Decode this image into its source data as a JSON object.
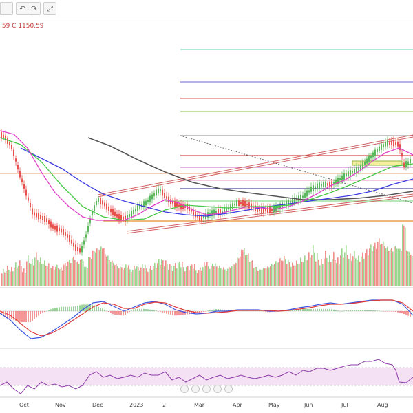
{
  "toolbar": {
    "undo_glyph": "↶",
    "redo_glyph": "↷",
    "fullscreen_glyph": "⤢",
    "icons": [
      "undo-icon",
      "redo-icon",
      "fullscreen-icon"
    ]
  },
  "ohlc_text": ".59 C 1150.59",
  "colors": {
    "up": "#5cb85c",
    "down": "#e8534f",
    "vol_up": "#9bd68f",
    "vol_down": "#ef8e8a",
    "sma_fast": "#e040c8",
    "sma_mid": "#44c844",
    "sma_slow": "#3a3ae0",
    "sma_long": "#555555",
    "macd": "#3a54e0",
    "signal": "#e03a3a",
    "rsi": "#8c3aa6"
  },
  "chart_data": {
    "type": "line",
    "x_ticks": [
      "Oct",
      "Nov",
      "Dec",
      "2023",
      "2",
      "Mar",
      "Apr",
      "May",
      "Jun",
      "Jul",
      "Aug"
    ],
    "last_close": 1150.59,
    "price_path": [
      [
        0,
        195
      ],
      [
        8,
        200
      ],
      [
        18,
        215
      ],
      [
        28,
        250
      ],
      [
        38,
        280
      ],
      [
        48,
        310
      ],
      [
        58,
        315
      ],
      [
        68,
        320
      ],
      [
        78,
        330
      ],
      [
        90,
        335
      ],
      [
        100,
        345
      ],
      [
        110,
        360
      ],
      [
        118,
        365
      ],
      [
        126,
        340
      ],
      [
        134,
        310
      ],
      [
        142,
        290
      ],
      [
        150,
        295
      ],
      [
        160,
        305
      ],
      [
        172,
        315
      ],
      [
        182,
        318
      ],
      [
        192,
        310
      ],
      [
        202,
        300
      ],
      [
        212,
        295
      ],
      [
        222,
        285
      ],
      [
        232,
        275
      ],
      [
        240,
        285
      ],
      [
        250,
        295
      ],
      [
        262,
        300
      ],
      [
        272,
        300
      ],
      [
        282,
        310
      ],
      [
        292,
        318
      ],
      [
        302,
        312
      ],
      [
        312,
        308
      ],
      [
        322,
        308
      ],
      [
        334,
        302
      ],
      [
        344,
        295
      ],
      [
        354,
        295
      ],
      [
        366,
        300
      ],
      [
        376,
        305
      ],
      [
        386,
        305
      ],
      [
        396,
        305
      ],
      [
        406,
        300
      ],
      [
        418,
        295
      ],
      [
        430,
        290
      ],
      [
        442,
        285
      ],
      [
        452,
        275
      ],
      [
        462,
        270
      ],
      [
        472,
        268
      ],
      [
        482,
        268
      ],
      [
        492,
        262
      ],
      [
        502,
        255
      ],
      [
        512,
        250
      ],
      [
        522,
        245
      ],
      [
        532,
        235
      ],
      [
        542,
        225
      ],
      [
        552,
        215
      ],
      [
        562,
        208
      ],
      [
        572,
        208
      ],
      [
        580,
        210
      ],
      [
        584,
        225
      ],
      [
        586,
        240
      ],
      [
        592,
        238
      ],
      [
        598,
        232
      ]
    ],
    "sma_fast_path": [
      [
        0,
        190
      ],
      [
        20,
        195
      ],
      [
        40,
        215
      ],
      [
        60,
        250
      ],
      [
        80,
        280
      ],
      [
        100,
        300
      ],
      [
        120,
        315
      ],
      [
        140,
        320
      ],
      [
        160,
        320
      ],
      [
        180,
        320
      ],
      [
        200,
        312
      ],
      [
        220,
        300
      ],
      [
        240,
        290
      ],
      [
        260,
        295
      ],
      [
        280,
        305
      ],
      [
        300,
        312
      ],
      [
        320,
        310
      ],
      [
        340,
        305
      ],
      [
        360,
        300
      ],
      [
        380,
        302
      ],
      [
        400,
        304
      ],
      [
        420,
        300
      ],
      [
        440,
        292
      ],
      [
        460,
        282
      ],
      [
        480,
        270
      ],
      [
        500,
        262
      ],
      [
        520,
        250
      ],
      [
        540,
        235
      ],
      [
        560,
        222
      ],
      [
        580,
        215
      ],
      [
        600,
        225
      ]
    ],
    "sma_mid_path": [
      [
        0,
        200
      ],
      [
        30,
        210
      ],
      [
        60,
        235
      ],
      [
        90,
        270
      ],
      [
        120,
        300
      ],
      [
        150,
        315
      ],
      [
        180,
        320
      ],
      [
        210,
        318
      ],
      [
        240,
        305
      ],
      [
        270,
        298
      ],
      [
        300,
        300
      ],
      [
        330,
        302
      ],
      [
        360,
        300
      ],
      [
        390,
        300
      ],
      [
        420,
        298
      ],
      [
        450,
        290
      ],
      [
        480,
        280
      ],
      [
        510,
        268
      ],
      [
        540,
        255
      ],
      [
        570,
        242
      ],
      [
        600,
        238
      ]
    ],
    "sma_slow_path": [
      [
        30,
        215
      ],
      [
        60,
        230
      ],
      [
        90,
        245
      ],
      [
        120,
        265
      ],
      [
        150,
        282
      ],
      [
        180,
        292
      ],
      [
        210,
        300
      ],
      [
        240,
        308
      ],
      [
        270,
        312
      ],
      [
        300,
        314
      ],
      [
        330,
        310
      ],
      [
        360,
        305
      ],
      [
        390,
        300
      ],
      [
        420,
        296
      ],
      [
        450,
        292
      ],
      [
        480,
        288
      ],
      [
        510,
        284
      ],
      [
        540,
        278
      ],
      [
        570,
        268
      ],
      [
        600,
        260
      ]
    ],
    "sma_long_path": [
      [
        128,
        200
      ],
      [
        160,
        212
      ],
      [
        200,
        232
      ],
      [
        240,
        250
      ],
      [
        280,
        265
      ],
      [
        320,
        274
      ],
      [
        360,
        280
      ],
      [
        400,
        285
      ],
      [
        440,
        290
      ],
      [
        480,
        290
      ],
      [
        520,
        288
      ],
      [
        560,
        284
      ],
      [
        600,
        278
      ]
    ],
    "macd_path": [
      [
        0,
        455
      ],
      [
        15,
        465
      ],
      [
        30,
        480
      ],
      [
        45,
        492
      ],
      [
        60,
        490
      ],
      [
        75,
        482
      ],
      [
        90,
        472
      ],
      [
        105,
        462
      ],
      [
        120,
        450
      ],
      [
        135,
        440
      ],
      [
        150,
        438
      ],
      [
        165,
        445
      ],
      [
        180,
        452
      ],
      [
        195,
        446
      ],
      [
        210,
        440
      ],
      [
        225,
        438
      ],
      [
        240,
        442
      ],
      [
        255,
        450
      ],
      [
        270,
        454
      ],
      [
        285,
        456
      ],
      [
        300,
        455
      ],
      [
        315,
        452
      ],
      [
        330,
        452
      ],
      [
        345,
        450
      ],
      [
        360,
        450
      ],
      [
        375,
        450
      ],
      [
        390,
        452
      ],
      [
        405,
        452
      ],
      [
        420,
        450
      ],
      [
        435,
        447
      ],
      [
        450,
        445
      ],
      [
        465,
        442
      ],
      [
        480,
        440
      ],
      [
        495,
        442
      ],
      [
        510,
        440
      ],
      [
        525,
        438
      ],
      [
        540,
        436
      ],
      [
        555,
        436
      ],
      [
        570,
        436
      ],
      [
        585,
        442
      ],
      [
        600,
        458
      ]
    ],
    "signal_path": [
      [
        0,
        452
      ],
      [
        15,
        458
      ],
      [
        30,
        470
      ],
      [
        45,
        482
      ],
      [
        60,
        488
      ],
      [
        75,
        484
      ],
      [
        90,
        476
      ],
      [
        105,
        466
      ],
      [
        120,
        456
      ],
      [
        135,
        446
      ],
      [
        150,
        440
      ],
      [
        165,
        442
      ],
      [
        180,
        448
      ],
      [
        195,
        448
      ],
      [
        210,
        442
      ],
      [
        225,
        439
      ],
      [
        240,
        440
      ],
      [
        255,
        446
      ],
      [
        270,
        451
      ],
      [
        285,
        454
      ],
      [
        300,
        455
      ],
      [
        315,
        454
      ],
      [
        330,
        453
      ],
      [
        345,
        451
      ],
      [
        360,
        451
      ],
      [
        375,
        451
      ],
      [
        390,
        451
      ],
      [
        405,
        452
      ],
      [
        420,
        451
      ],
      [
        435,
        449
      ],
      [
        450,
        447
      ],
      [
        465,
        444
      ],
      [
        480,
        442
      ],
      [
        495,
        442
      ],
      [
        510,
        441
      ],
      [
        525,
        439
      ],
      [
        540,
        437
      ],
      [
        555,
        436
      ],
      [
        570,
        436
      ],
      [
        585,
        440
      ],
      [
        600,
        452
      ]
    ],
    "rsi_path": [
      [
        0,
        560
      ],
      [
        10,
        555
      ],
      [
        20,
        565
      ],
      [
        30,
        572
      ],
      [
        40,
        560
      ],
      [
        50,
        565
      ],
      [
        60,
        555
      ],
      [
        70,
        560
      ],
      [
        80,
        558
      ],
      [
        90,
        562
      ],
      [
        100,
        560
      ],
      [
        110,
        565
      ],
      [
        120,
        560
      ],
      [
        130,
        545
      ],
      [
        140,
        540
      ],
      [
        150,
        548
      ],
      [
        160,
        545
      ],
      [
        170,
        550
      ],
      [
        180,
        548
      ],
      [
        190,
        545
      ],
      [
        200,
        548
      ],
      [
        210,
        542
      ],
      [
        220,
        545
      ],
      [
        230,
        545
      ],
      [
        240,
        540
      ],
      [
        250,
        552
      ],
      [
        260,
        548
      ],
      [
        270,
        555
      ],
      [
        280,
        550
      ],
      [
        290,
        545
      ],
      [
        300,
        552
      ],
      [
        310,
        548
      ],
      [
        320,
        545
      ],
      [
        330,
        550
      ],
      [
        340,
        548
      ],
      [
        350,
        545
      ],
      [
        360,
        548
      ],
      [
        370,
        550
      ],
      [
        380,
        548
      ],
      [
        390,
        545
      ],
      [
        400,
        548
      ],
      [
        410,
        545
      ],
      [
        420,
        540
      ],
      [
        430,
        545
      ],
      [
        440,
        538
      ],
      [
        450,
        540
      ],
      [
        460,
        535
      ],
      [
        470,
        535
      ],
      [
        480,
        538
      ],
      [
        490,
        535
      ],
      [
        500,
        532
      ],
      [
        510,
        530
      ],
      [
        520,
        530
      ],
      [
        530,
        525
      ],
      [
        540,
        525
      ],
      [
        550,
        522
      ],
      [
        560,
        528
      ],
      [
        570,
        530
      ],
      [
        575,
        538
      ],
      [
        580,
        555
      ],
      [
        590,
        556
      ],
      [
        600,
        548
      ]
    ],
    "volume_samples": [
      [
        4,
        25
      ],
      [
        10,
        30
      ],
      [
        16,
        28
      ],
      [
        22,
        35
      ],
      [
        28,
        38
      ],
      [
        34,
        26
      ],
      [
        40,
        45
      ],
      [
        46,
        40
      ],
      [
        52,
        50
      ],
      [
        58,
        42
      ],
      [
        64,
        38
      ],
      [
        70,
        34
      ],
      [
        76,
        30
      ],
      [
        82,
        32
      ],
      [
        88,
        28
      ],
      [
        94,
        35
      ],
      [
        100,
        40
      ],
      [
        106,
        45
      ],
      [
        112,
        38
      ],
      [
        118,
        42
      ],
      [
        124,
        30
      ],
      [
        130,
        45
      ],
      [
        136,
        55
      ],
      [
        142,
        58
      ],
      [
        148,
        60
      ],
      [
        154,
        48
      ],
      [
        160,
        40
      ],
      [
        166,
        35
      ],
      [
        172,
        30
      ],
      [
        178,
        28
      ],
      [
        184,
        32
      ],
      [
        190,
        25
      ],
      [
        196,
        30
      ],
      [
        202,
        28
      ],
      [
        208,
        32
      ],
      [
        214,
        26
      ],
      [
        220,
        30
      ],
      [
        226,
        34
      ],
      [
        232,
        40
      ],
      [
        238,
        38
      ],
      [
        244,
        32
      ],
      [
        250,
        30
      ],
      [
        256,
        34
      ],
      [
        262,
        36
      ],
      [
        268,
        28
      ],
      [
        274,
        30
      ],
      [
        280,
        32
      ],
      [
        286,
        24
      ],
      [
        292,
        28
      ],
      [
        298,
        36
      ],
      [
        304,
        30
      ],
      [
        310,
        34
      ],
      [
        316,
        30
      ],
      [
        322,
        28
      ],
      [
        328,
        26
      ],
      [
        334,
        30
      ],
      [
        340,
        35
      ],
      [
        346,
        45
      ],
      [
        352,
        58
      ],
      [
        358,
        50
      ],
      [
        364,
        40
      ],
      [
        370,
        30
      ],
      [
        376,
        26
      ],
      [
        382,
        28
      ],
      [
        388,
        30
      ],
      [
        394,
        34
      ],
      [
        400,
        38
      ],
      [
        406,
        42
      ],
      [
        412,
        45
      ],
      [
        418,
        40
      ],
      [
        424,
        35
      ],
      [
        430,
        38
      ],
      [
        436,
        42
      ],
      [
        442,
        45
      ],
      [
        448,
        50
      ],
      [
        454,
        60
      ],
      [
        460,
        48
      ],
      [
        466,
        40
      ],
      [
        472,
        52
      ],
      [
        478,
        45
      ],
      [
        484,
        50
      ],
      [
        490,
        42
      ],
      [
        496,
        55
      ],
      [
        502,
        60
      ],
      [
        508,
        48
      ],
      [
        514,
        52
      ],
      [
        520,
        45
      ],
      [
        526,
        50
      ],
      [
        532,
        55
      ],
      [
        538,
        62
      ],
      [
        544,
        65
      ],
      [
        550,
        72
      ],
      [
        556,
        68
      ],
      [
        562,
        60
      ],
      [
        568,
        58
      ],
      [
        574,
        62
      ],
      [
        580,
        58
      ],
      [
        586,
        95
      ],
      [
        592,
        55
      ],
      [
        598,
        48
      ]
    ]
  }
}
